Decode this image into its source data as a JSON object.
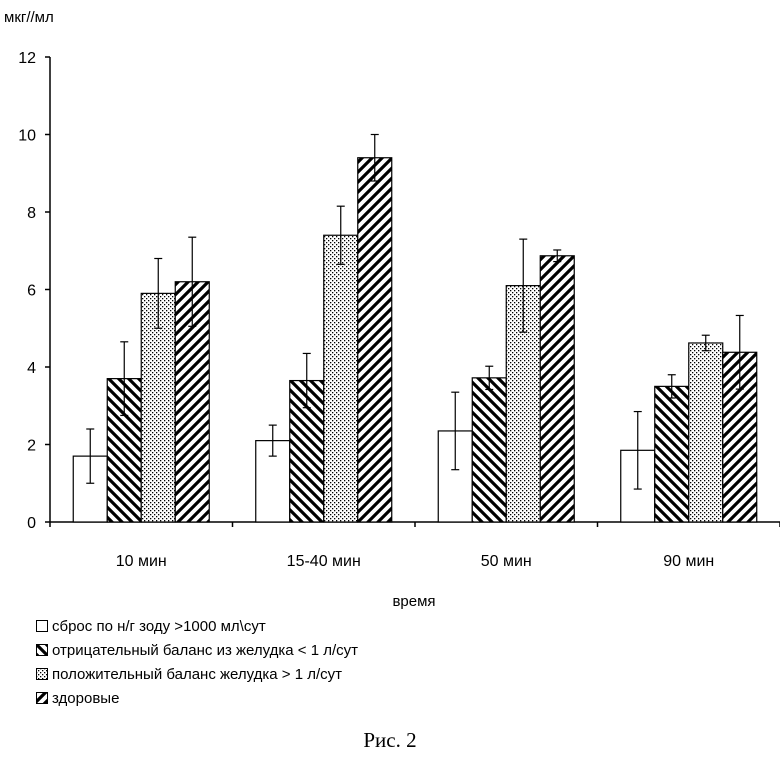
{
  "chart_data": {
    "type": "bar",
    "ylabel": "мкг//мл",
    "xlabel": "время",
    "ylim": [
      0,
      12
    ],
    "yticks": [
      0,
      2,
      4,
      6,
      8,
      10,
      12
    ],
    "categories": [
      "10 мин",
      "15-40 мин",
      "50 мин",
      "90 мин"
    ],
    "series": [
      {
        "name": "сброс по н/г зоду >1000 мл\\сут",
        "pattern": "blank",
        "values": [
          1.7,
          2.1,
          2.35,
          1.85
        ],
        "errors": [
          0.7,
          0.4,
          1.0,
          1.0
        ]
      },
      {
        "name": "отрицательный баланс из желудка < 1 л/сут",
        "pattern": "hatch-back",
        "values": [
          3.7,
          3.65,
          3.72,
          3.5
        ],
        "errors": [
          0.95,
          0.7,
          0.3,
          0.3
        ]
      },
      {
        "name": "положительный баланс желудка > 1 л/сут",
        "pattern": "dots",
        "values": [
          5.9,
          7.4,
          6.1,
          4.62
        ],
        "errors": [
          0.9,
          0.75,
          1.2,
          0.2
        ]
      },
      {
        "name": "здоровые",
        "pattern": "hatch-forward",
        "values": [
          6.2,
          9.4,
          6.87,
          4.38
        ],
        "errors": [
          1.15,
          0.6,
          0.15,
          0.95
        ]
      }
    ],
    "error_bars": true,
    "legend_position": "bottom-left",
    "grid": false
  },
  "caption": "Рис. 2"
}
